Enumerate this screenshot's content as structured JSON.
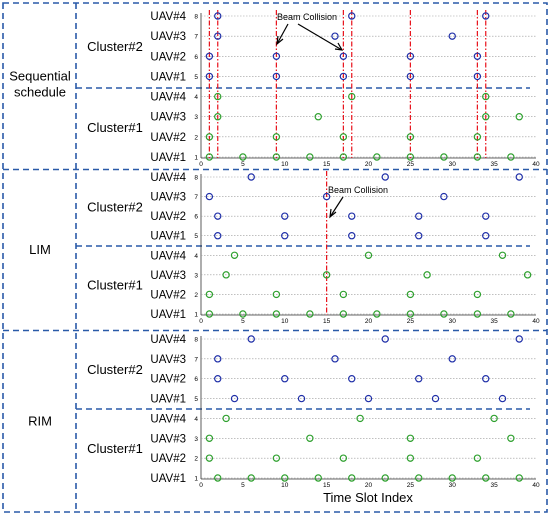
{
  "figure": {
    "xlabel": "Time Slot Index",
    "x_ticks": [
      0,
      5,
      10,
      15,
      20,
      25,
      30,
      35,
      40
    ],
    "y_ticks": [
      "1",
      "2",
      "3",
      "4",
      "5",
      "6",
      "7",
      "8"
    ],
    "uav_labels": [
      "UAV#1",
      "UAV#2",
      "UAV#3",
      "UAV#4",
      "UAV#1",
      "UAV#2",
      "UAV#3",
      "UAV#4"
    ],
    "colors": {
      "cluster1": "#2ea02e",
      "cluster2": "#1f2fa8",
      "collision": "#e8101a",
      "dashed": "#2a5aa8"
    }
  },
  "chart_data": [
    {
      "type": "scatter",
      "title": "",
      "scheme_label": "Sequential schedule",
      "cluster_labels": [
        "Cluster#1",
        "Cluster#2"
      ],
      "xlim": [
        0,
        40
      ],
      "ylim": [
        1,
        8
      ],
      "annotation": {
        "text": "Beam Collision",
        "at": 10
      },
      "collision_slots": [
        1,
        2,
        9,
        17,
        18,
        25,
        33,
        34
      ],
      "series": [
        {
          "uav": 1,
          "cluster": 1,
          "x": [
            1,
            5,
            9,
            13,
            17,
            21,
            25,
            29,
            33,
            37
          ]
        },
        {
          "uav": 2,
          "cluster": 1,
          "x": [
            1,
            9,
            17,
            25,
            33
          ]
        },
        {
          "uav": 3,
          "cluster": 1,
          "x": [
            2,
            14,
            34,
            38
          ]
        },
        {
          "uav": 4,
          "cluster": 1,
          "x": [
            2,
            18,
            34
          ]
        },
        {
          "uav": 1,
          "cluster": 2,
          "x": [
            1,
            9,
            17,
            25,
            33
          ]
        },
        {
          "uav": 2,
          "cluster": 2,
          "x": [
            1,
            9,
            17,
            25,
            33
          ]
        },
        {
          "uav": 3,
          "cluster": 2,
          "x": [
            2,
            16,
            30
          ]
        },
        {
          "uav": 4,
          "cluster": 2,
          "x": [
            2,
            18,
            34
          ]
        }
      ]
    },
    {
      "type": "scatter",
      "title": "",
      "scheme_label": "LIM",
      "cluster_labels": [
        "Cluster#1",
        "Cluster#2"
      ],
      "xlim": [
        0,
        40
      ],
      "ylim": [
        1,
        8
      ],
      "annotation": {
        "text": "Beam Collision",
        "at": 15
      },
      "collision_slots": [
        15
      ],
      "series": [
        {
          "uav": 1,
          "cluster": 1,
          "x": [
            1,
            5,
            9,
            13,
            17,
            21,
            25,
            29,
            33,
            37
          ]
        },
        {
          "uav": 2,
          "cluster": 1,
          "x": [
            1,
            9,
            17,
            25,
            33
          ]
        },
        {
          "uav": 3,
          "cluster": 1,
          "x": [
            3,
            15,
            27,
            39
          ]
        },
        {
          "uav": 4,
          "cluster": 1,
          "x": [
            4,
            20,
            36
          ]
        },
        {
          "uav": 1,
          "cluster": 2,
          "x": [
            2,
            10,
            18,
            26,
            34
          ]
        },
        {
          "uav": 2,
          "cluster": 2,
          "x": [
            2,
            10,
            18,
            26,
            34
          ]
        },
        {
          "uav": 3,
          "cluster": 2,
          "x": [
            1,
            15,
            29
          ]
        },
        {
          "uav": 4,
          "cluster": 2,
          "x": [
            6,
            22,
            38
          ]
        }
      ]
    },
    {
      "type": "scatter",
      "title": "",
      "scheme_label": "RIM",
      "cluster_labels": [
        "Cluster#1",
        "Cluster#2"
      ],
      "xlim": [
        0,
        40
      ],
      "ylim": [
        1,
        8
      ],
      "annotation": null,
      "collision_slots": [],
      "series": [
        {
          "uav": 1,
          "cluster": 1,
          "x": [
            2,
            6,
            10,
            14,
            18,
            22,
            26,
            30,
            34,
            38
          ]
        },
        {
          "uav": 2,
          "cluster": 1,
          "x": [
            1,
            9,
            17,
            25,
            33
          ]
        },
        {
          "uav": 3,
          "cluster": 1,
          "x": [
            1,
            13,
            25,
            37
          ]
        },
        {
          "uav": 4,
          "cluster": 1,
          "x": [
            3,
            19,
            35
          ]
        },
        {
          "uav": 1,
          "cluster": 2,
          "x": [
            4,
            12,
            20,
            28,
            36
          ]
        },
        {
          "uav": 2,
          "cluster": 2,
          "x": [
            2,
            10,
            18,
            26,
            34
          ]
        },
        {
          "uav": 3,
          "cluster": 2,
          "x": [
            2,
            16,
            30
          ]
        },
        {
          "uav": 4,
          "cluster": 2,
          "x": [
            6,
            22,
            38
          ]
        }
      ]
    }
  ]
}
